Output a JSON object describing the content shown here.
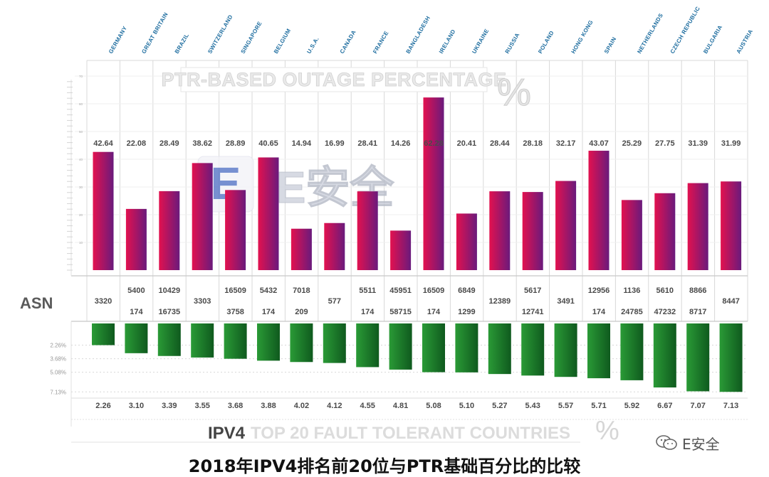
{
  "chart_data": {
    "type": "bar",
    "title": "PTR-BASED OUTAGE PERCENTAGE",
    "title_unit": "%",
    "asn_label": "ASN",
    "bottom_title_bold": "IPV4",
    "bottom_title_rest": "TOP 20 FAULT TOLERANT COUNTRIES",
    "bottom_unit": "%",
    "categories": [
      "GERMANY",
      "GREAT BRITAIN",
      "BRAZIL",
      "SWITZERLAND",
      "SINGAPORE",
      "BELGIUM",
      "U.S.A.",
      "CANADA",
      "FRANCE",
      "BANGLADESH",
      "IRELAND",
      "UKRAINE",
      "RUSSIA",
      "POLAND",
      "HONG KONG",
      "SPAIN",
      "NETHERLANDS",
      "CZECH REPUBLIC",
      "BULGARIA",
      "AUSTRIA"
    ],
    "series": [
      {
        "values": [
          42.64,
          22.08,
          28.49,
          38.62,
          28.89,
          40.65,
          14.94,
          16.99,
          28.41,
          14.26,
          62.28,
          20.41,
          28.44,
          28.18,
          32.17,
          43.07,
          25.29,
          27.75,
          31.39,
          31.99
        ],
        "labels": [
          "42.64",
          "22.08",
          "28.49",
          "38.62",
          "28.89",
          "40.65",
          "14.94",
          "16.99",
          "28.41",
          "14.26",
          "62.28",
          "20.41",
          "28.44",
          "28.18",
          "32.17",
          "43.07",
          "25.29",
          "27.75",
          "31.39",
          "31.99"
        ]
      },
      {
        "values": [
          2.26,
          3.1,
          3.39,
          3.55,
          3.68,
          3.88,
          4.02,
          4.12,
          4.55,
          4.81,
          5.08,
          5.1,
          5.27,
          5.43,
          5.57,
          5.71,
          5.92,
          6.67,
          7.07,
          7.13
        ],
        "labels": [
          "2.26",
          "3.10",
          "3.39",
          "3.55",
          "3.68",
          "3.88",
          "4.02",
          "4.12",
          "4.55",
          "4.81",
          "5.08",
          "5.10",
          "5.27",
          "5.43",
          "5.57",
          "5.71",
          "5.92",
          "6.67",
          "7.07",
          "7.13"
        ]
      }
    ],
    "asn": [
      [
        "3320"
      ],
      [
        "5400",
        "174"
      ],
      [
        "10429",
        "16735"
      ],
      [
        "3303"
      ],
      [
        "16509",
        "3758"
      ],
      [
        "5432",
        "174"
      ],
      [
        "7018",
        "209"
      ],
      [
        "577"
      ],
      [
        "5511",
        "174"
      ],
      [
        "45951",
        "58715"
      ],
      [
        "16509",
        "174"
      ],
      [
        "6849",
        "1299"
      ],
      [
        "12389"
      ],
      [
        "5617",
        "12741"
      ],
      [
        "3491"
      ],
      [
        "12956",
        "174"
      ],
      [
        "1136",
        "24785"
      ],
      [
        "5610",
        "47232"
      ],
      [
        "8866",
        "8717"
      ],
      [
        "8447"
      ]
    ],
    "top_yticks": [
      10,
      20,
      30,
      40,
      50,
      60,
      70
    ],
    "bottom_yticks": [
      "2.26%",
      "3.68%",
      "5.08%",
      "7.13%"
    ],
    "bottom_ytick_values": [
      2.26,
      3.68,
      5.08,
      7.13
    ],
    "top_ylim": [
      0,
      80
    ],
    "bottom_ylim": [
      0,
      7.4
    ],
    "colors": {
      "top_bar_start": "#e2114f",
      "top_bar_end": "#6a1a7c",
      "bottom_bar_light": "#2a9a36",
      "bottom_bar_dark": "#0f5a1e",
      "country_label": "#1f6ea0",
      "frame": "#d8d8d8"
    }
  },
  "watermark": {
    "badge_letter": "E",
    "text": "E安全"
  },
  "caption": "2018年IPV4排名前20位与PTR基础百分比的比较",
  "wechat": {
    "icon": "wechat-icon",
    "text": "E安全"
  }
}
